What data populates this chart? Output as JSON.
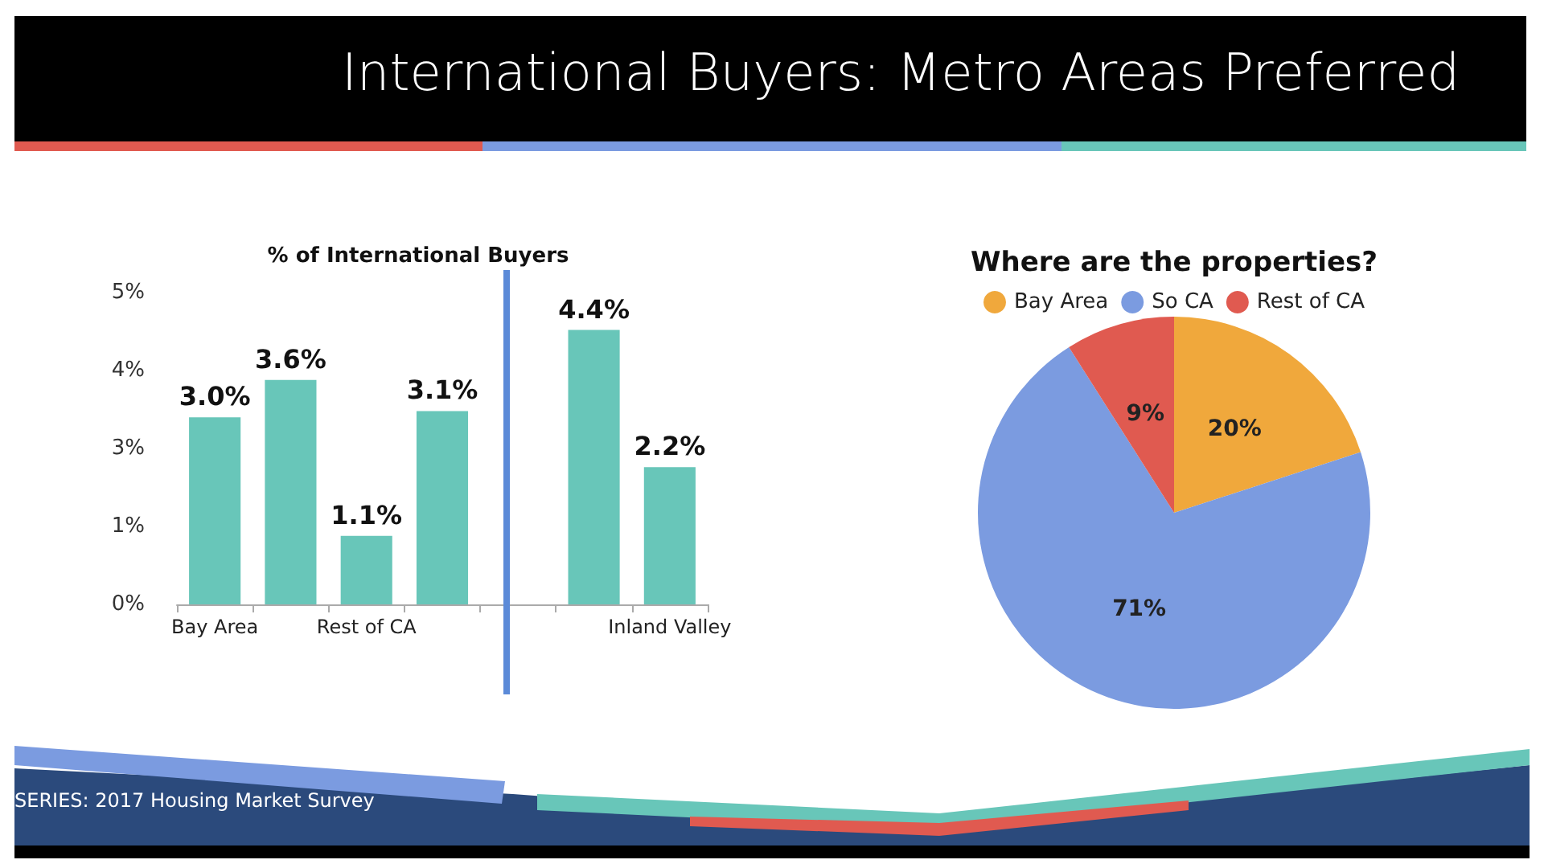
{
  "chart_data": [
    {
      "type": "other",
      "title": "International Buyers: Metro Areas Preferred",
      "annotations": [
        "SERIES: 2017 Housing Market Survey"
      ]
    },
    {
      "type": "bar",
      "title": "% of International Buyers",
      "categories": [
        "Bay Area",
        null,
        "Rest of CA",
        null,
        null,
        null,
        "Inland Valley"
      ],
      "values": [
        3.0,
        3.6,
        1.1,
        3.1,
        null,
        4.4,
        2.2
      ],
      "value_labels": [
        "3.0%",
        "3.6%",
        "1.1%",
        "3.1%",
        null,
        "4.4%",
        "2.2%"
      ],
      "color": "#68c6b9",
      "ylim": [
        0,
        5
      ],
      "yticks": [
        {
          "value": 0,
          "label": "0%"
        },
        {
          "value": 1.25,
          "label": "1%"
        },
        {
          "value": 2.5,
          "label": "3%"
        },
        {
          "value": 3.75,
          "label": "4%"
        },
        {
          "value": 5,
          "label": "5%"
        }
      ],
      "grid": false
    },
    {
      "type": "pie",
      "title": "Where are the properties?",
      "categories": [
        "Bay Area",
        "So CA",
        "Rest of CA"
      ],
      "values": [
        20,
        71,
        9
      ],
      "colors": [
        "#f0a83c",
        "#7b9be0",
        "#e05a50"
      ],
      "value_labels": [
        "20%",
        "71%",
        "9%"
      ],
      "legend": "top"
    }
  ]
}
